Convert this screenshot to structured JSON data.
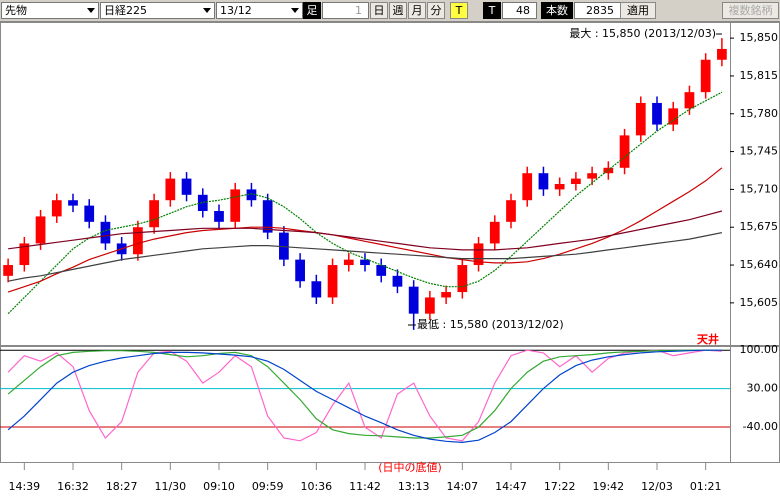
{
  "toolbar": {
    "market": "先物",
    "index": "日経225",
    "contract": "13/12",
    "period_label": "足",
    "period_value": "1",
    "buttons": [
      "日",
      "週",
      "月",
      "分",
      "T"
    ],
    "tick_label": "T",
    "tick_value": "48",
    "count_label": "本数",
    "count_value": "2835",
    "apply": "適用",
    "multi": "複数銘柄"
  },
  "chart_data": [
    {
      "type": "candlestick",
      "categories": [
        null,
        "14:39",
        null,
        null,
        "16:32",
        null,
        null,
        "18:27",
        null,
        null,
        "11/30",
        null,
        null,
        "09:10",
        null,
        null,
        "09:59",
        null,
        null,
        "10:36",
        null,
        null,
        "11:42",
        null,
        null,
        "13:13",
        null,
        null,
        "14:07",
        null,
        null,
        "14:47",
        null,
        null,
        "17:22",
        null,
        null,
        "19:42",
        null,
        null,
        "12/03",
        null,
        null,
        "01:21",
        null
      ],
      "open": [
        15630,
        15640,
        15660,
        15685,
        15700,
        15695,
        15680,
        15660,
        15650,
        15675,
        15700,
        15720,
        15705,
        15690,
        15680,
        15710,
        15700,
        15670,
        15645,
        15625,
        15610,
        15640,
        15645,
        15640,
        15630,
        15620,
        15595,
        15610,
        15615,
        15640,
        15660,
        15680,
        15700,
        15725,
        15710,
        15715,
        15720,
        15725,
        15730,
        15760,
        15790,
        15770,
        15785,
        15800,
        15830
      ],
      "high": [
        15646,
        15666,
        15691,
        15706,
        15706,
        15701,
        15686,
        15666,
        15681,
        15706,
        15726,
        15726,
        15711,
        15696,
        15716,
        15716,
        15706,
        15676,
        15651,
        15631,
        15646,
        15651,
        15651,
        15646,
        15636,
        15626,
        15616,
        15621,
        15646,
        15666,
        15686,
        15706,
        15731,
        15731,
        15721,
        15726,
        15731,
        15736,
        15766,
        15796,
        15796,
        15791,
        15806,
        15836,
        15850
      ],
      "low": [
        15624,
        15634,
        15654,
        15679,
        15689,
        15674,
        15654,
        15644,
        15644,
        15669,
        15694,
        15699,
        15684,
        15674,
        15674,
        15694,
        15664,
        15639,
        15619,
        15604,
        15604,
        15634,
        15634,
        15624,
        15614,
        15580,
        15589,
        15604,
        15609,
        15634,
        15654,
        15674,
        15694,
        15704,
        15704,
        15709,
        15714,
        15719,
        15724,
        15754,
        15764,
        15764,
        15779,
        15794,
        15824
      ],
      "close": [
        15640,
        15660,
        15685,
        15700,
        15695,
        15680,
        15660,
        15650,
        15675,
        15700,
        15720,
        15705,
        15690,
        15680,
        15710,
        15700,
        15670,
        15645,
        15625,
        15610,
        15640,
        15645,
        15640,
        15630,
        15620,
        15595,
        15610,
        15615,
        15640,
        15660,
        15680,
        15700,
        15725,
        15710,
        15715,
        15720,
        15725,
        15730,
        15760,
        15790,
        15770,
        15785,
        15800,
        15830,
        15840
      ],
      "up_color": "#ff0000",
      "down_color": "#0000dd",
      "series": [
        {
          "color": "#008000",
          "dashed": true,
          "values": [
            15595,
            15610,
            15625,
            15640,
            15655,
            15665,
            15672,
            15675,
            15678,
            15682,
            15688,
            15694,
            15698,
            15700,
            15703,
            15706,
            15702,
            15694,
            15683,
            15670,
            15660,
            15652,
            15646,
            15640,
            15634,
            15628,
            15623,
            15620,
            15620,
            15625,
            15635,
            15648,
            15662,
            15676,
            15690,
            15704,
            15716,
            15728,
            15740,
            15752,
            15764,
            15774,
            15784,
            15792,
            15800
          ]
        },
        {
          "color": "#cc0000",
          "values": [
            15615,
            15620,
            15625,
            15632,
            15638,
            15645,
            15650,
            15655,
            15660,
            15664,
            15667,
            15670,
            15672,
            15673,
            15674,
            15675,
            15675,
            15674,
            15672,
            15670,
            15668,
            15665,
            15662,
            15659,
            15656,
            15653,
            15650,
            15647,
            15645,
            15643,
            15642,
            15642,
            15643,
            15646,
            15650,
            15655,
            15660,
            15666,
            15673,
            15681,
            15690,
            15699,
            15708,
            15718,
            15730
          ]
        },
        {
          "color": "#800020",
          "values": [
            15655,
            15657,
            15659,
            15661,
            15663,
            15665,
            15667,
            15669,
            15670,
            15671,
            15672,
            15673,
            15674,
            15674,
            15674,
            15674,
            15673,
            15672,
            15671,
            15670,
            15668,
            15666,
            15664,
            15662,
            15660,
            15658,
            15656,
            15655,
            15654,
            15654,
            15654,
            15655,
            15656,
            15658,
            15660,
            15662,
            15664,
            15667,
            15670,
            15673,
            15676,
            15679,
            15682,
            15686,
            15690
          ]
        },
        {
          "color": "#404040",
          "values": [
            15625,
            15628,
            15630,
            15633,
            15636,
            15639,
            15642,
            15645,
            15647,
            15649,
            15651,
            15653,
            15655,
            15656,
            15657,
            15658,
            15658,
            15657,
            15656,
            15655,
            15654,
            15653,
            15652,
            15651,
            15650,
            15649,
            15648,
            15647,
            15646,
            15646,
            15646,
            15646,
            15647,
            15648,
            15649,
            15650,
            15652,
            15654,
            15656,
            15658,
            15660,
            15662,
            15664,
            15667,
            15670
          ]
        }
      ],
      "ylim": [
        15566,
        15864
      ],
      "yticks": [
        {
          "value": 15850,
          "label": "15,850"
        },
        {
          "value": 15815,
          "label": "15,815"
        },
        {
          "value": 15780,
          "label": "15,780"
        },
        {
          "value": 15745,
          "label": "15,745"
        },
        {
          "value": 15710,
          "label": "15,710"
        },
        {
          "value": 15675,
          "label": "15,675"
        },
        {
          "value": 15640,
          "label": "15,640"
        },
        {
          "value": 15605,
          "label": "15,605"
        }
      ],
      "annotations": [
        "最大 : 15,850 (2013/12/03)",
        "最低 : 15,580 (2013/12/02)"
      ]
    },
    {
      "type": "line",
      "series": [
        {
          "color": "#ff66cc",
          "values": [
            60,
            90,
            80,
            95,
            70,
            -10,
            -60,
            -30,
            60,
            95,
            98,
            80,
            40,
            60,
            90,
            70,
            -20,
            -60,
            -65,
            -50,
            0,
            40,
            -40,
            -60,
            20,
            40,
            -20,
            -60,
            -65,
            -30,
            40,
            90,
            100,
            95,
            70,
            90,
            60,
            85,
            95,
            98,
            100,
            90,
            95,
            100,
            98
          ]
        },
        {
          "color": "#33aa33",
          "values": [
            20,
            45,
            70,
            90,
            96,
            98,
            99,
            99,
            98,
            96,
            92,
            88,
            90,
            94,
            96,
            90,
            70,
            40,
            10,
            -25,
            -45,
            -52,
            -55,
            -56,
            -58,
            -60,
            -60,
            -58,
            -55,
            -40,
            -10,
            30,
            60,
            80,
            88,
            90,
            92,
            95,
            97,
            98,
            99,
            99,
            100,
            100,
            100
          ]
        },
        {
          "color": "#0044cc",
          "values": [
            -45,
            -20,
            10,
            40,
            60,
            72,
            80,
            86,
            90,
            94,
            96,
            96,
            95,
            93,
            91,
            88,
            80,
            65,
            45,
            25,
            10,
            -5,
            -20,
            -32,
            -45,
            -55,
            -62,
            -66,
            -68,
            -64,
            -50,
            -30,
            0,
            30,
            55,
            72,
            82,
            88,
            92,
            95,
            97,
            98,
            99,
            100,
            100
          ]
        }
      ],
      "ylim": [
        -100,
        104
      ],
      "yticks": [
        {
          "value": 100,
          "label": "100.00"
        },
        {
          "value": 30,
          "label": "30.00"
        },
        {
          "value": -40,
          "label": "-40.00"
        }
      ],
      "annotations": [
        "天井",
        "(日中の底値)"
      ]
    }
  ]
}
